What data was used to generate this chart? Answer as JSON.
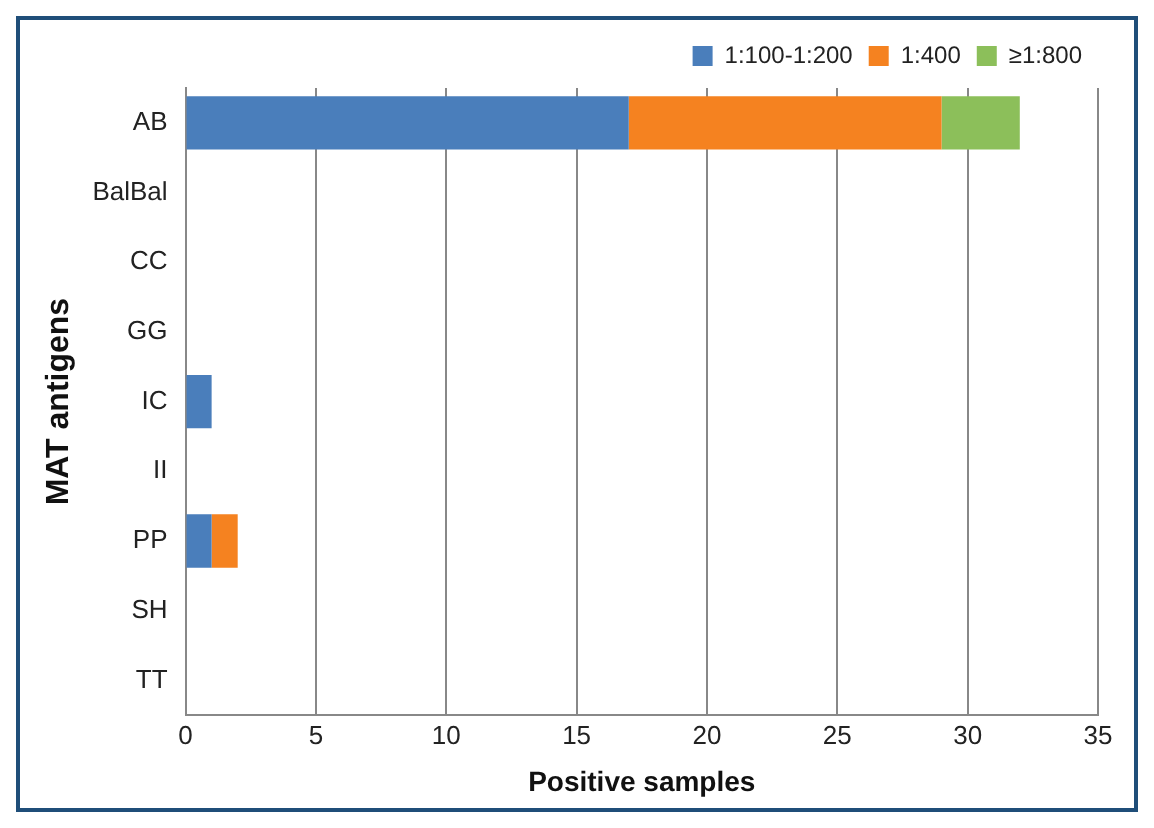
{
  "chart_data": {
    "type": "bar",
    "orientation": "horizontal",
    "stacked": true,
    "xlabel": "Positive samples",
    "ylabel": "MAT antigens",
    "categories": [
      "AB",
      "BalBal",
      "CC",
      "GG",
      "IC",
      "II",
      "PP",
      "SH",
      "TT"
    ],
    "series": [
      {
        "name": "1:100-1:200",
        "color": "#4a7ebb",
        "values": [
          17,
          null,
          null,
          null,
          1,
          null,
          1,
          null,
          null
        ]
      },
      {
        "name": "1:400",
        "color": "#f58220",
        "values": [
          12,
          null,
          null,
          null,
          null,
          null,
          1,
          null,
          null
        ]
      },
      {
        "name": "≥1:800",
        "color": "#8cbf5a",
        "values": [
          3,
          null,
          null,
          null,
          null,
          null,
          null,
          null,
          null
        ]
      }
    ],
    "xlim": [
      0,
      35
    ],
    "xticks": [
      0,
      5,
      10,
      15,
      20,
      25,
      30,
      35
    ],
    "grid": "x",
    "legend": "top right"
  }
}
